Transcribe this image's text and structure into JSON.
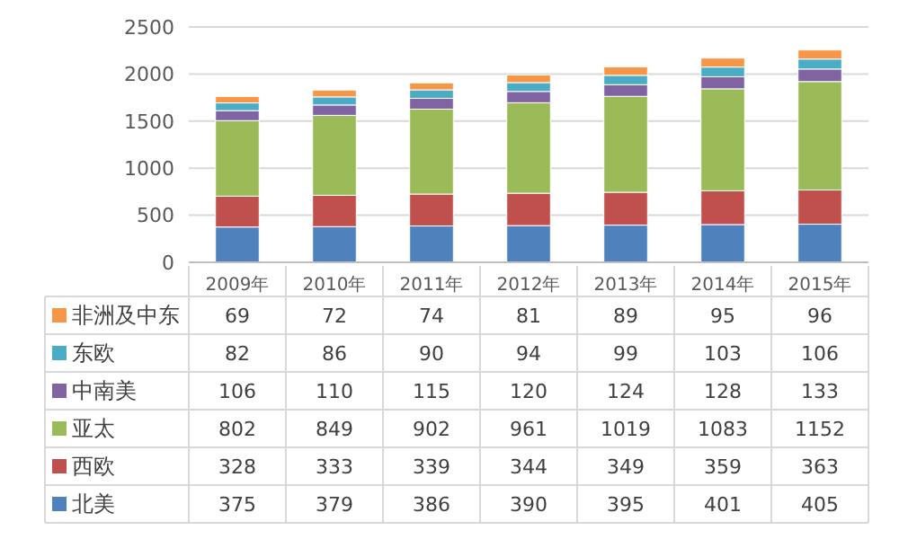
{
  "chart_data": {
    "type": "bar",
    "stacked": true,
    "categories": [
      "2009年",
      "2010年",
      "2011年",
      "2012年",
      "2013年",
      "2014年",
      "2015年"
    ],
    "series": [
      {
        "name": "北美",
        "color": "#4f81bd",
        "values": [
          375,
          379,
          386,
          390,
          395,
          401,
          405
        ]
      },
      {
        "name": "西欧",
        "color": "#c0504d",
        "values": [
          328,
          333,
          339,
          344,
          349,
          359,
          363
        ]
      },
      {
        "name": "亚太",
        "color": "#9bbb59",
        "values": [
          802,
          849,
          902,
          961,
          1019,
          1083,
          1152
        ]
      },
      {
        "name": "中南美",
        "color": "#8064a2",
        "values": [
          106,
          110,
          115,
          120,
          124,
          128,
          133
        ]
      },
      {
        "name": "东欧",
        "color": "#4bacc6",
        "values": [
          82,
          86,
          90,
          94,
          99,
          103,
          106
        ]
      },
      {
        "name": "非洲及中东",
        "color": "#f79646",
        "values": [
          69,
          72,
          74,
          81,
          89,
          95,
          96
        ]
      }
    ],
    "ylim": [
      0,
      2500
    ],
    "yticks": [
      0,
      500,
      1000,
      1500,
      2000,
      2500
    ],
    "grid": "y",
    "data_labels": true,
    "legend": "bottom"
  }
}
